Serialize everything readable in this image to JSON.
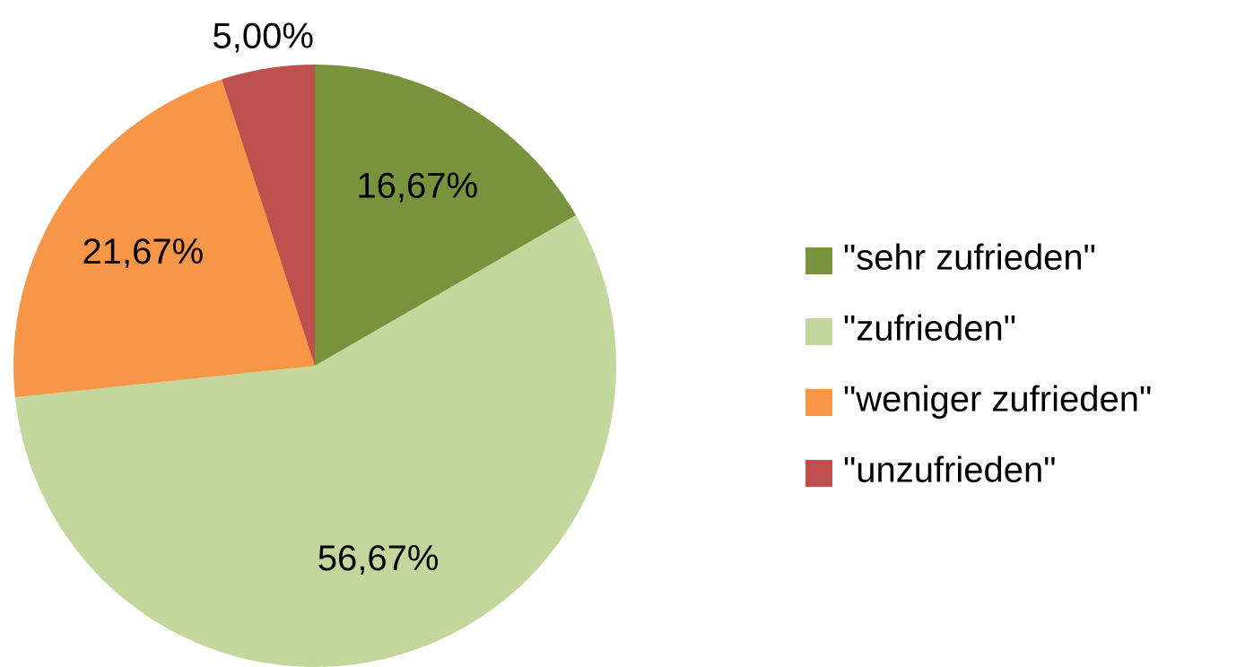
{
  "chart_data": {
    "type": "pie",
    "categories": [
      "\"sehr zufrieden\"",
      "\"zufrieden\"",
      "\"weniger zufrieden\"",
      "\"unzufrieden\""
    ],
    "values": [
      16.67,
      56.67,
      21.67,
      5.0
    ],
    "value_labels": [
      "16,67%",
      "56,67%",
      "21,67%",
      "5,00%"
    ],
    "colors": [
      "#77933c",
      "#c3d69b",
      "#f79646",
      "#c0504d"
    ],
    "legend": "right"
  }
}
